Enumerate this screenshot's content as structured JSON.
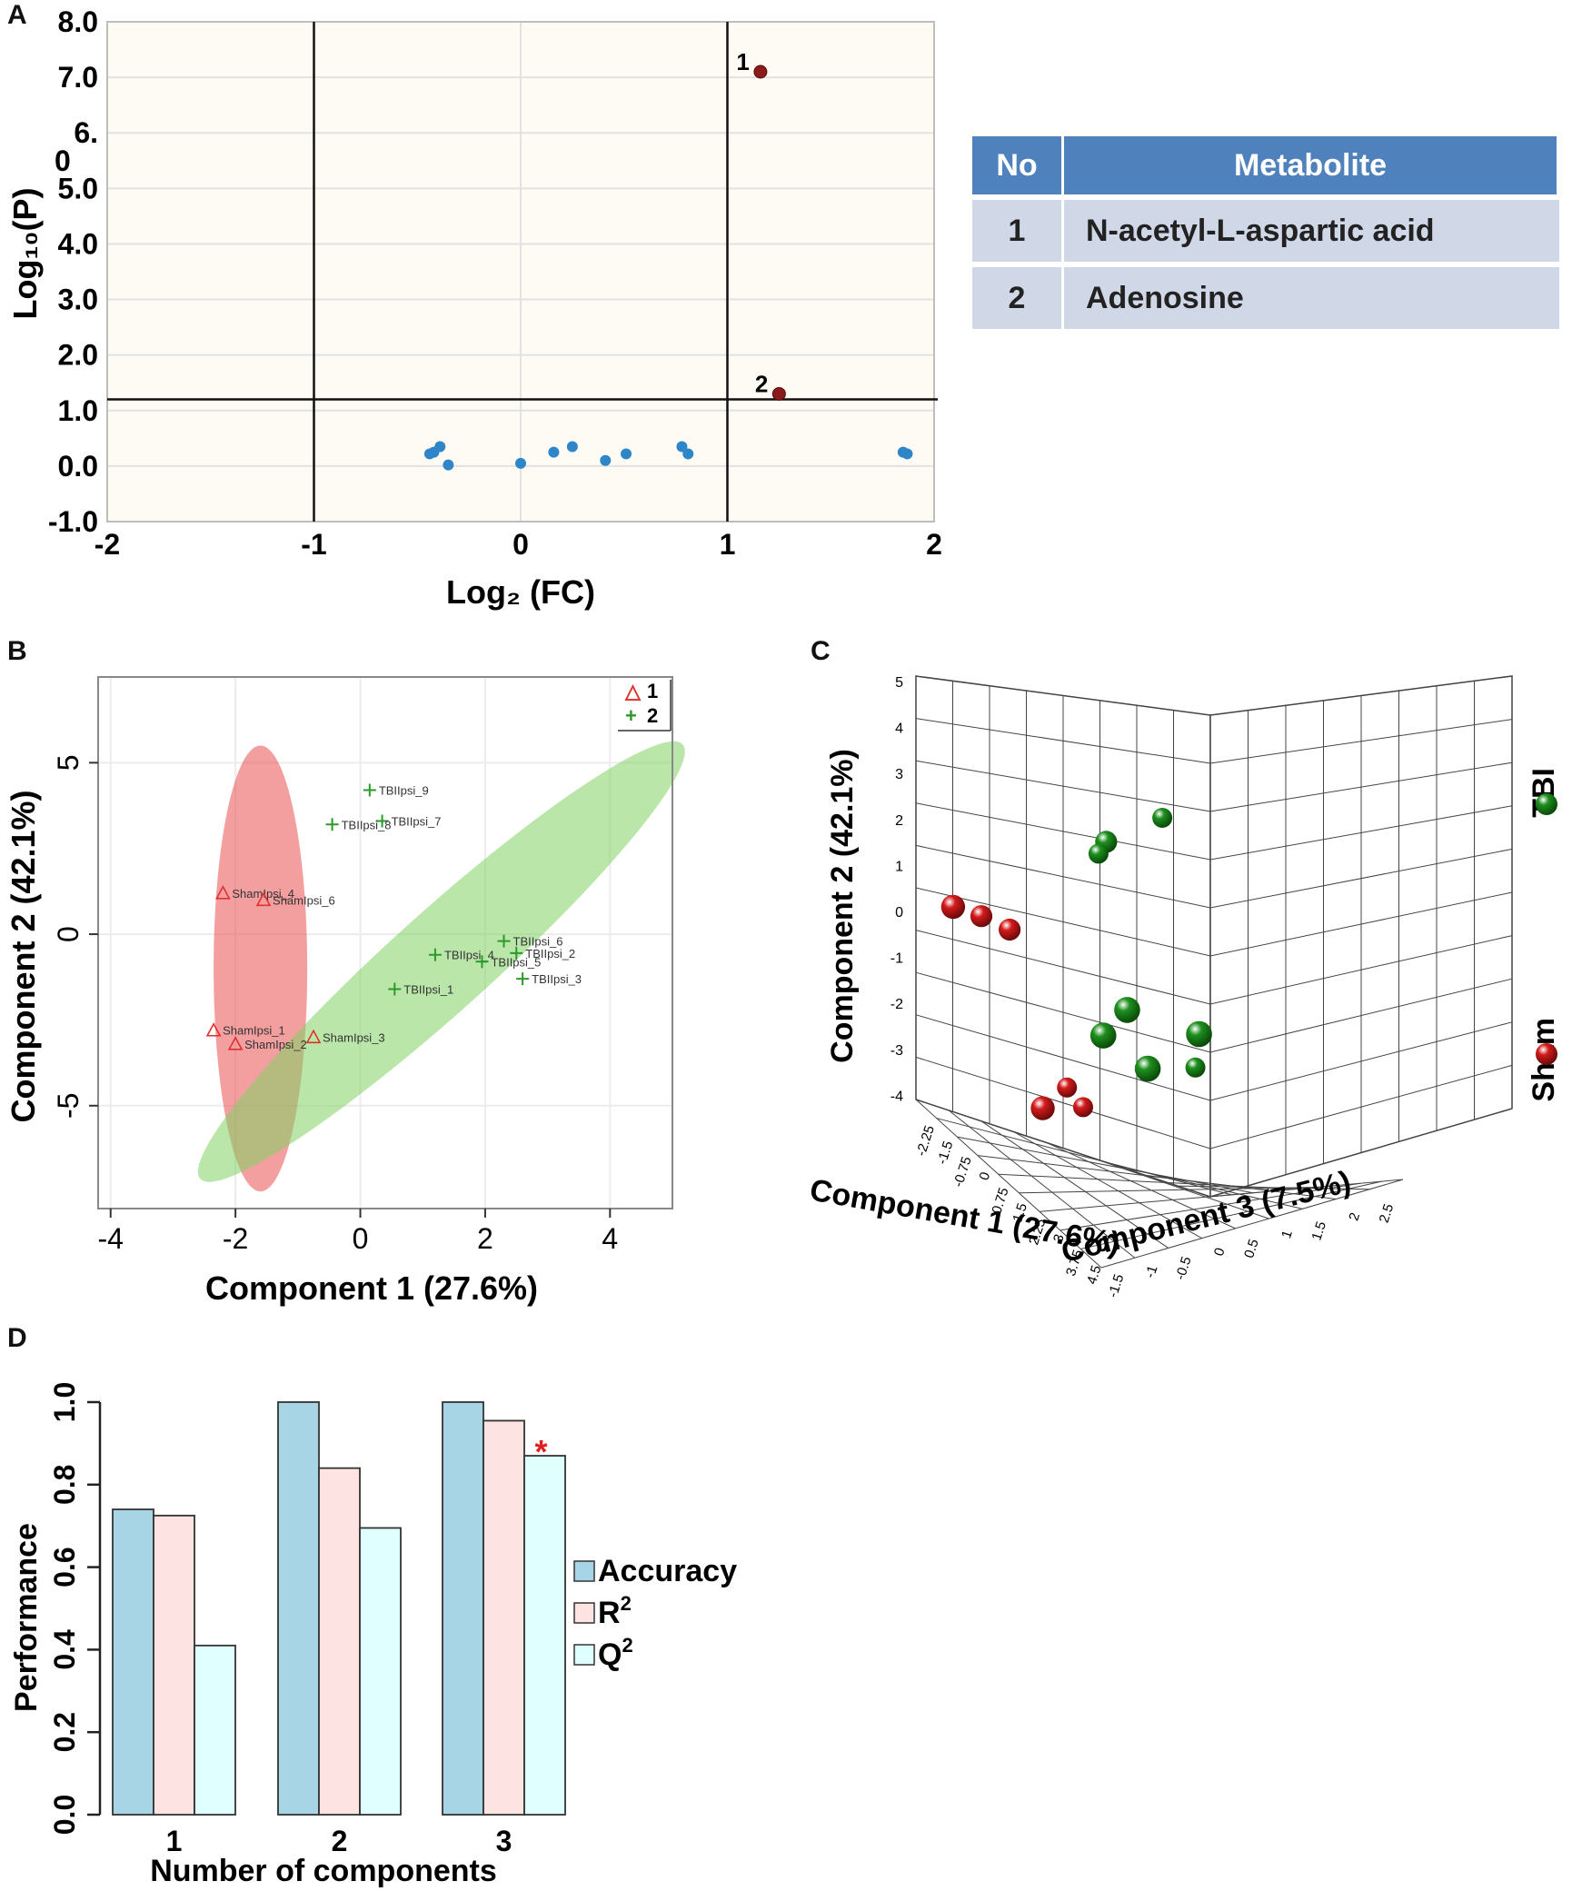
{
  "panels": {
    "a": "A",
    "b": "B",
    "c": "C",
    "d": "D"
  },
  "table": {
    "headers": [
      "No",
      "Metabolite"
    ],
    "rows": [
      {
        "no": "1",
        "name": "N-acetyl-L-aspartic acid"
      },
      {
        "no": "2",
        "name": "Adenosine"
      }
    ]
  },
  "chart_data": [
    {
      "id": "A",
      "type": "scatter",
      "title": "",
      "xlabel": "Log₂ (FC)",
      "ylabel": "Log₁₀(P)",
      "xlim": [
        -2,
        2
      ],
      "ylim": [
        -1.0,
        8.0
      ],
      "x_ticks": [
        "-2",
        "-1",
        "0",
        "1",
        "2"
      ],
      "y_ticks": [
        "-1.0",
        "0.0",
        "1.0",
        "2.0",
        "3.0",
        "4.0",
        "5.0",
        "6.",
        "7.0",
        "8.0"
      ],
      "y_tick_extra": "0",
      "thresholds": {
        "vertical": [
          -1,
          1
        ],
        "horizontal": [
          1.2
        ]
      },
      "significant": [
        {
          "label": "1",
          "x": 1.16,
          "y": 7.1
        },
        {
          "label": "2",
          "x": 1.25,
          "y": 1.3
        }
      ],
      "nonsignificant": [
        {
          "x": -0.44,
          "y": 0.22
        },
        {
          "x": -0.42,
          "y": 0.25
        },
        {
          "x": -0.39,
          "y": 0.35
        },
        {
          "x": -0.35,
          "y": 0.02
        },
        {
          "x": 0.0,
          "y": 0.05
        },
        {
          "x": 0.16,
          "y": 0.25
        },
        {
          "x": 0.25,
          "y": 0.35
        },
        {
          "x": 0.41,
          "y": 0.1
        },
        {
          "x": 0.51,
          "y": 0.22
        },
        {
          "x": 0.78,
          "y": 0.35
        },
        {
          "x": 0.81,
          "y": 0.22
        },
        {
          "x": 1.85,
          "y": 0.25
        },
        {
          "x": 1.87,
          "y": 0.22
        }
      ],
      "colors": {
        "significant": "#8b1a1a",
        "nonsignificant": "#2e86c8",
        "background": "#fdfbf3"
      }
    },
    {
      "id": "B",
      "type": "scatter",
      "title": "",
      "xlabel": "Component 1 (27.6%)",
      "ylabel": "Component  2 (42.1%)",
      "xlim": [
        -4.2,
        5.0
      ],
      "ylim": [
        -8.0,
        7.5
      ],
      "x_ticks": [
        -4,
        -2,
        0,
        2,
        4
      ],
      "y_ticks": [
        -5,
        0,
        5
      ],
      "legend": {
        "position": "top-right",
        "entries": [
          {
            "label": "1",
            "marker": "△",
            "color": "#e03030"
          },
          {
            "label": "2",
            "marker": "+",
            "color": "#2a9a2a"
          }
        ]
      },
      "series": [
        {
          "name": "1",
          "color": "#e03030",
          "ellipse": {
            "cx": -1.6,
            "cy": -1.0,
            "rx": 0.75,
            "ry": 6.5,
            "angle": 0,
            "fill": "rgba(235,80,80,0.55)"
          },
          "points": [
            {
              "label": "ShamIpsi_4",
              "x": -2.2,
              "y": 1.2
            },
            {
              "label": "ShamIpsi_6",
              "x": -1.55,
              "y": 1.0
            },
            {
              "label": "ShamIpsi_1",
              "x": -2.35,
              "y": -2.8
            },
            {
              "label": "ShamIpsi_2",
              "x": -2.0,
              "y": -3.2
            },
            {
              "label": "ShamIpsi_3",
              "x": -0.75,
              "y": -3.0
            }
          ]
        },
        {
          "name": "2",
          "color": "#2a9a2a",
          "ellipse": {
            "cx": 1.3,
            "cy": -0.8,
            "rx": 5.2,
            "ry": 1.45,
            "angle": -42,
            "fill": "rgba(130,210,100,0.55)"
          },
          "points": [
            {
              "label": "TBIIpsi_9",
              "x": 0.15,
              "y": 4.2
            },
            {
              "label": "TBIIpsi_7",
              "x": 0.35,
              "y": 3.3
            },
            {
              "label": "TBIIpsi_8",
              "x": -0.45,
              "y": 3.2
            },
            {
              "label": "TBIIpsi_6",
              "x": 2.3,
              "y": -0.2
            },
            {
              "label": "TBIIpsi_2",
              "x": 2.5,
              "y": -0.55
            },
            {
              "label": "TBIIpsi_4",
              "x": 1.2,
              "y": -0.6
            },
            {
              "label": "TBIIpsi_5",
              "x": 1.95,
              "y": -0.8
            },
            {
              "label": "TBIIpsi_1",
              "x": 0.55,
              "y": -1.6
            },
            {
              "label": "TBIIpsi_3",
              "x": 2.6,
              "y": -1.3
            }
          ]
        }
      ]
    },
    {
      "id": "C",
      "type": "scatter",
      "title": "",
      "xlabel": "Component 1 (27.6%)",
      "ylabel": "Component 2 (42.1%)",
      "zlabel": "Component 3 (7.5%)",
      "y_ticks": [
        "5",
        "4",
        "3",
        "2",
        "1",
        "0",
        "-1",
        "-2",
        "-3",
        "-4"
      ],
      "x_ticks": [
        "-2.25",
        "-1.5",
        "-0.75",
        "0",
        "0.75",
        "1.5",
        "2.25",
        "3",
        "3.75",
        "4.5"
      ],
      "z_ticks": [
        "-1.5",
        "-1",
        "-0.5",
        "0",
        "0.5",
        "1",
        "1.5",
        "2",
        "2.5"
      ],
      "legend": {
        "position": "right",
        "entries": [
          {
            "label": "TBI",
            "color": "#1e8f1e"
          },
          {
            "label": "Sham",
            "color": "#d41a1a"
          }
        ]
      },
      "series": [
        {
          "name": "TBI",
          "color": "#1e8f1e",
          "points": [
            {
              "x": 3.4,
              "y": 4.2,
              "z": 0.4,
              "s": 1.0
            },
            {
              "x": 2.1,
              "y": 3.4,
              "z": 0.3,
              "s": 1.1
            },
            {
              "x": 2.0,
              "y": 3.1,
              "z": 0.2,
              "s": 1.0
            },
            {
              "x": 2.8,
              "y": -0.5,
              "z": 0.1,
              "s": 1.3
            },
            {
              "x": 2.3,
              "y": -1.2,
              "z": 0.0,
              "s": 1.3
            },
            {
              "x": 3.4,
              "y": -1.8,
              "z": 0.0,
              "s": 1.3
            },
            {
              "x": 4.4,
              "y": -0.8,
              "z": 0.3,
              "s": 1.3
            },
            {
              "x": 4.4,
              "y": -1.6,
              "z": 0.2,
              "s": 1.0
            }
          ]
        },
        {
          "name": "Sham",
          "color": "#d41a1a",
          "points": [
            {
              "x": -1.6,
              "y": 1.2,
              "z": 0.2,
              "s": 1.2
            },
            {
              "x": -0.9,
              "y": 1.1,
              "z": 0.2,
              "s": 1.1
            },
            {
              "x": -0.2,
              "y": 0.9,
              "z": 0.2,
              "s": 1.1
            },
            {
              "x": 1.4,
              "y": -2.6,
              "z": 0.0,
              "s": 1.0
            },
            {
              "x": 0.8,
              "y": -3.2,
              "z": 0.0,
              "s": 1.2
            },
            {
              "x": 1.8,
              "y": -3.0,
              "z": 0.0,
              "s": 1.0
            }
          ]
        }
      ]
    },
    {
      "id": "D",
      "type": "bar",
      "title": "",
      "xlabel": "Number of components",
      "ylabel": "Performance",
      "ylim": [
        0.0,
        1.0
      ],
      "y_ticks": [
        "0.0",
        "0.2",
        "0.4",
        "0.6",
        "0.8",
        "1.0"
      ],
      "categories": [
        "1",
        "2",
        "3"
      ],
      "series": [
        {
          "name": "Accuracy",
          "sup": "",
          "color": "#a8d5e5",
          "values": [
            0.74,
            1.0,
            1.0
          ]
        },
        {
          "name": "R",
          "sup": "2",
          "color": "#fde3e1",
          "values": [
            0.725,
            0.84,
            0.955
          ]
        },
        {
          "name": "Q",
          "sup": "2",
          "color": "#e0ffff",
          "values": [
            0.41,
            0.695,
            0.87
          ]
        }
      ],
      "annotation": {
        "text": "*",
        "category": "3",
        "series": "Q",
        "color": "#e02020"
      },
      "legend": {
        "position": "right"
      }
    }
  ]
}
